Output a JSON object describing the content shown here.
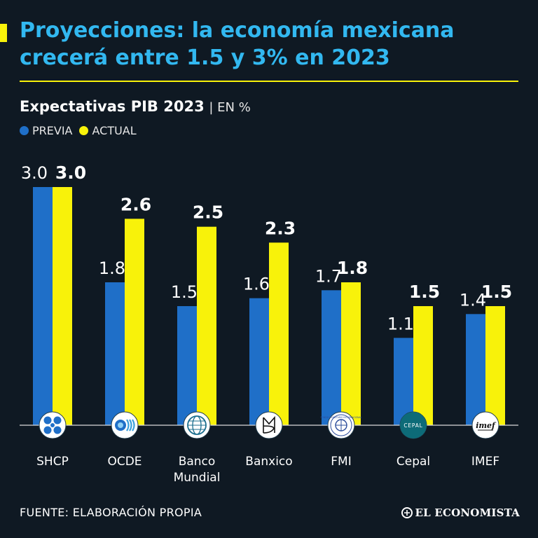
{
  "header": {
    "title": "Proyecciones: la economía mexicana crecerá entre 1.5 y 3% en 2023",
    "subtitle_bold": "Expectativas PIB 2023",
    "subtitle_unit": "| EN %"
  },
  "colors": {
    "background": "#0f1923",
    "title": "#32b8f0",
    "accent": "#f8f20a",
    "previa": "#1f6fc8",
    "actual": "#f8f20a"
  },
  "chart_data": {
    "type": "bar",
    "title": "Expectativas PIB 2023",
    "unit": "EN %",
    "categories": [
      "SHCP",
      "OCDE",
      "Banco Mundial",
      "Banxico",
      "FMI",
      "Cepal",
      "IMEF"
    ],
    "category_lines": [
      [
        "SHCP"
      ],
      [
        "OCDE"
      ],
      [
        "Banco",
        "Mundial"
      ],
      [
        "Banxico"
      ],
      [
        "FMI"
      ],
      [
        "Cepal"
      ],
      [
        "IMEF"
      ]
    ],
    "series": [
      {
        "name": "PREVIA",
        "values": [
          3.0,
          1.8,
          1.5,
          1.6,
          1.7,
          1.1,
          1.4
        ]
      },
      {
        "name": "ACTUAL",
        "values": [
          3.0,
          2.6,
          2.5,
          2.3,
          1.8,
          1.5,
          1.5
        ]
      }
    ],
    "data_labels_previa": [
      "3.0",
      "1.8",
      "1.5",
      "1.6",
      "1.7",
      "1.1",
      "1.4"
    ],
    "data_labels_actual": [
      "3.0",
      "2.6",
      "2.5",
      "2.3",
      "1.8",
      "1.5",
      "1.5"
    ],
    "ylim": [
      0,
      3.0
    ],
    "grid": false,
    "legend_position": "top-left",
    "logo_icons": [
      "shcp-logo-icon",
      "ocde-logo-icon",
      "banco-mundial-logo-icon",
      "banxico-logo-icon",
      "fmi-logo-icon",
      "cepal-logo-icon",
      "imef-logo-icon"
    ],
    "logo_texts": [
      "",
      "",
      "",
      "",
      "FONDO MONETARIO INTERNACIONAL",
      "CEPAL",
      "imef"
    ]
  },
  "footer": {
    "source": "FUENTE: ELABORACIÓN PROPIA",
    "brand": "EL ECONOMISTA"
  }
}
